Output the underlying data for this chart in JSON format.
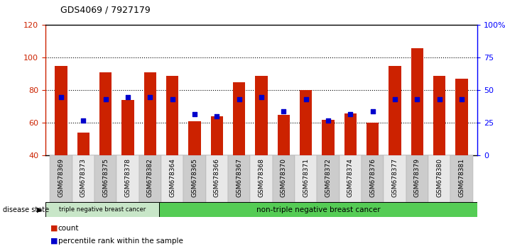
{
  "title": "GDS4069 / 7927179",
  "samples": [
    "GSM678369",
    "GSM678373",
    "GSM678375",
    "GSM678378",
    "GSM678382",
    "GSM678364",
    "GSM678365",
    "GSM678366",
    "GSM678367",
    "GSM678368",
    "GSM678370",
    "GSM678371",
    "GSM678372",
    "GSM678374",
    "GSM678376",
    "GSM678377",
    "GSM678379",
    "GSM678380",
    "GSM678381"
  ],
  "count_values": [
    95,
    54,
    91,
    74,
    91,
    89,
    61,
    64,
    85,
    89,
    65,
    80,
    62,
    66,
    60,
    95,
    106,
    89,
    87
  ],
  "percentile_values": [
    45,
    27,
    43,
    45,
    45,
    43,
    32,
    30,
    43,
    45,
    34,
    43,
    27,
    32,
    34,
    43,
    43,
    43,
    43
  ],
  "bar_color": "#cc2200",
  "dot_color": "#0000cc",
  "ylim_left": [
    40,
    120
  ],
  "ylim_right": [
    0,
    100
  ],
  "yticks_left": [
    40,
    60,
    80,
    100,
    120
  ],
  "yticks_right": [
    0,
    25,
    50,
    75,
    100
  ],
  "yticklabels_right": [
    "0",
    "25",
    "50",
    "75",
    "100%"
  ],
  "grid_values": [
    60,
    80,
    100
  ],
  "triple_neg_count": 5,
  "triple_neg_label": "triple negative breast cancer",
  "non_triple_neg_label": "non-triple negative breast cancer",
  "disease_state_label": "disease state",
  "legend_count_label": "count",
  "legend_percentile_label": "percentile rank within the sample",
  "bar_width": 0.55,
  "triple_neg_bg": "#c8e6c8",
  "non_triple_neg_bg": "#55cc55"
}
